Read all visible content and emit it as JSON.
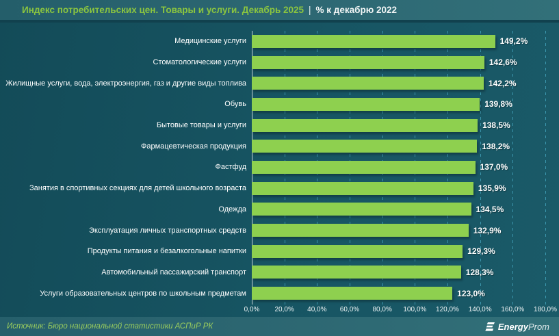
{
  "header": {
    "title_main": "Индекс потребительских цен. Товары и услуги. Декабрь 2025",
    "title_sep": "|",
    "title_suffix": "% к декабрю 2022"
  },
  "colors": {
    "bar_green": "#8ed04f",
    "title_green": "#8cc63f",
    "band_teal": "#2b6571",
    "body_teal": "#175563",
    "gridline_cyan": "#48acc6",
    "source_green": "#9acd5e"
  },
  "chart_data": {
    "type": "bar",
    "orientation": "horizontal",
    "title": "Индекс потребительских цен. Товары и услуги. Декабрь 2025 | % к декабрю 2022",
    "categories": [
      "Медицинские услуги",
      "Стоматологические услуги",
      "Жилищные услуги, вода, электроэнергия, газ и другие виды топлива",
      "Обувь",
      "Бытовые товары и услуги",
      "Фармацевтическая продукция",
      "Фастфуд",
      "Занятия в спортивных секциях для детей школьного возраста",
      "Одежда",
      "Эксплуатация личных транспортных средств",
      "Продукты питания и безалкогольные напитки",
      "Автомобильный пассажирский транспорт",
      "Услуги образовательных центров по школьным предметам"
    ],
    "values": [
      149.2,
      142.6,
      142.2,
      139.8,
      138.5,
      138.2,
      137.0,
      135.9,
      134.5,
      132.9,
      129.3,
      128.3,
      123.0
    ],
    "value_labels": [
      "149,2%",
      "142,6%",
      "142,2%",
      "139,8%",
      "138,5%",
      "138,2%",
      "137,0%",
      "135,9%",
      "134,5%",
      "132,9%",
      "129,3%",
      "128,3%",
      "123,0%"
    ],
    "xlabel": "",
    "ylabel": "",
    "xlim": [
      0,
      180
    ],
    "x_ticks": [
      0,
      20,
      40,
      60,
      80,
      100,
      120,
      140,
      160,
      180
    ],
    "x_tick_labels": [
      "0,0%",
      "20,0%",
      "40,0%",
      "60,0%",
      "80,0%",
      "100,0%",
      "120,0%",
      "140,0%",
      "160,0%",
      "180,0%"
    ],
    "grid": "vertical-dashed",
    "legend": "none"
  },
  "footer": {
    "source": "Источник: Бюро национальной статистики АСПиР РК",
    "logo_bold": "Energy",
    "logo_light": "Prom"
  }
}
